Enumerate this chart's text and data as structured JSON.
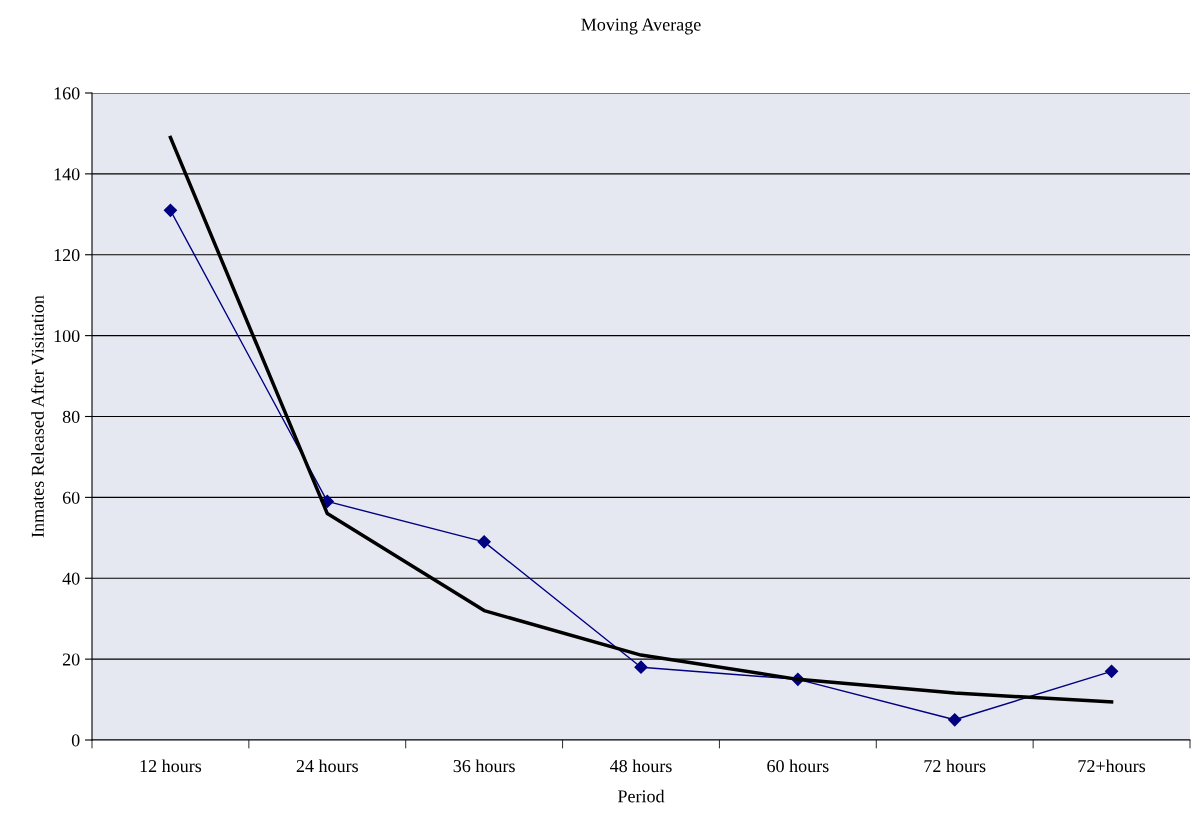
{
  "chart_data": {
    "type": "line",
    "title": "Moving Average",
    "xlabel": "Period",
    "ylabel": "Inmates Released After Visitation",
    "categories": [
      "12 hours",
      "24 hours",
      "36 hours",
      "48 hours",
      "60 hours",
      "72 hours",
      "72+hours"
    ],
    "series": [
      {
        "color": "#000080",
        "values": [
          131,
          59,
          49,
          18,
          15,
          5,
          17
        ],
        "marker": "diamond"
      },
      {
        "color": "#000000",
        "values": [
          149,
          56,
          32,
          21,
          15,
          11.6,
          9.4
        ],
        "marker": "none"
      }
    ],
    "ylim": [
      0,
      160
    ],
    "yticks": [
      0,
      20,
      40,
      60,
      80,
      100,
      120,
      140,
      160
    ],
    "grid": "y",
    "legend": false
  }
}
